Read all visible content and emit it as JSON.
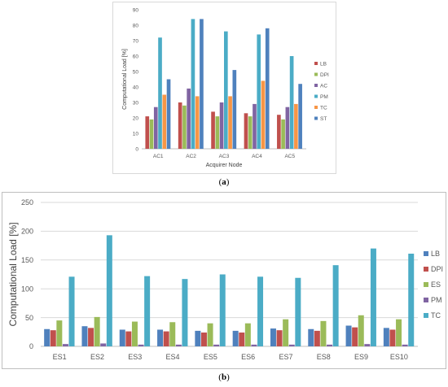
{
  "chart_data": [
    {
      "type": "bar",
      "caption": "a",
      "categories": [
        "AC1",
        "AC2",
        "AC3",
        "AC4",
        "AC5"
      ],
      "series": [
        {
          "name": "LB",
          "color": "#c0504d",
          "values": [
            21,
            30,
            24,
            23,
            22
          ]
        },
        {
          "name": "DPI",
          "color": "#9bbb59",
          "values": [
            19,
            28,
            21,
            21,
            19
          ]
        },
        {
          "name": "AC",
          "color": "#8064a2",
          "values": [
            27,
            39,
            30,
            29,
            27
          ]
        },
        {
          "name": "PM",
          "color": "#4bacc6",
          "values": [
            72,
            84,
            76,
            74,
            60
          ]
        },
        {
          "name": "TC",
          "color": "#f79646",
          "values": [
            35,
            34,
            34,
            44,
            29
          ]
        },
        {
          "name": "ST",
          "color": "#4f81bd",
          "values": [
            45,
            84,
            51,
            78,
            42
          ]
        }
      ],
      "xlabel": "Acquirer Node",
      "ylabel": "Computational Load [%]",
      "ylim": [
        0,
        90
      ],
      "yticks": [
        "0",
        "10",
        "20",
        "30",
        "40",
        "50",
        "60",
        "70",
        "80",
        "90"
      ],
      "grid": false,
      "legend": "right"
    },
    {
      "type": "bar",
      "caption": "b",
      "categories": [
        "ES1",
        "ES2",
        "ES3",
        "ES4",
        "ES5",
        "ES6",
        "ES7",
        "ES8",
        "ES9",
        "ES10"
      ],
      "series": [
        {
          "name": "LB",
          "color": "#4f81bd",
          "values": [
            30,
            35,
            29,
            29,
            27,
            27,
            31,
            30,
            36,
            32
          ]
        },
        {
          "name": "DPI",
          "color": "#c0504d",
          "values": [
            28,
            32,
            26,
            26,
            24,
            24,
            28,
            27,
            33,
            29
          ]
        },
        {
          "name": "ES",
          "color": "#9bbb59",
          "values": [
            45,
            51,
            43,
            42,
            40,
            40,
            47,
            44,
            54,
            47
          ]
        },
        {
          "name": "PM",
          "color": "#8064a2",
          "values": [
            4,
            5,
            3,
            3,
            3,
            3,
            3,
            3,
            4,
            3
          ]
        },
        {
          "name": "TC",
          "color": "#4bacc6",
          "values": [
            121,
            193,
            122,
            117,
            125,
            121,
            119,
            141,
            170,
            161
          ]
        }
      ],
      "xlabel": "",
      "ylabel": "Computational Load [%]",
      "ylim": [
        0,
        250
      ],
      "yticks": [
        "0",
        "50",
        "100",
        "150",
        "200",
        "250"
      ],
      "grid": true,
      "legend": "right"
    }
  ]
}
